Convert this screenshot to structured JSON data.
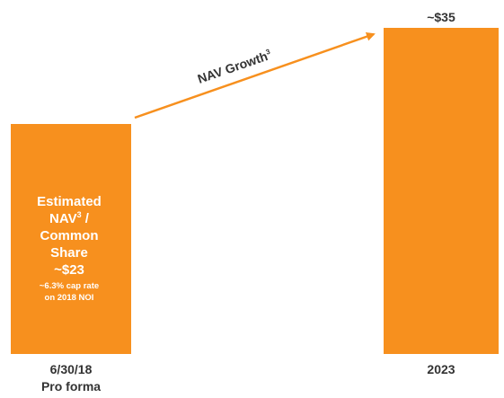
{
  "chart_data": {
    "type": "bar",
    "categories": [
      "6/30/18 Pro forma",
      "2023"
    ],
    "category_labels": [
      {
        "line1": "6/30/18",
        "line2": "Pro forma"
      },
      {
        "line1": "2023",
        "line2": ""
      }
    ],
    "values": [
      23,
      35
    ],
    "ylim": [
      0,
      37
    ],
    "grid": false,
    "legend": "none",
    "bar_color": "#f7901e",
    "bar1_text": {
      "l1": "Estimated",
      "l2": "NAV",
      "l2_sup": "3",
      "l2_tail": " /",
      "l3": "Common",
      "l4": "Share",
      "l5": "~$23",
      "note1": "~6.3% cap rate",
      "note2": "on 2018 NOI"
    },
    "bar2_label": "~$35",
    "arrow": {
      "label": "NAV Growth",
      "label_sup": "3",
      "color": "#f7901e"
    }
  }
}
